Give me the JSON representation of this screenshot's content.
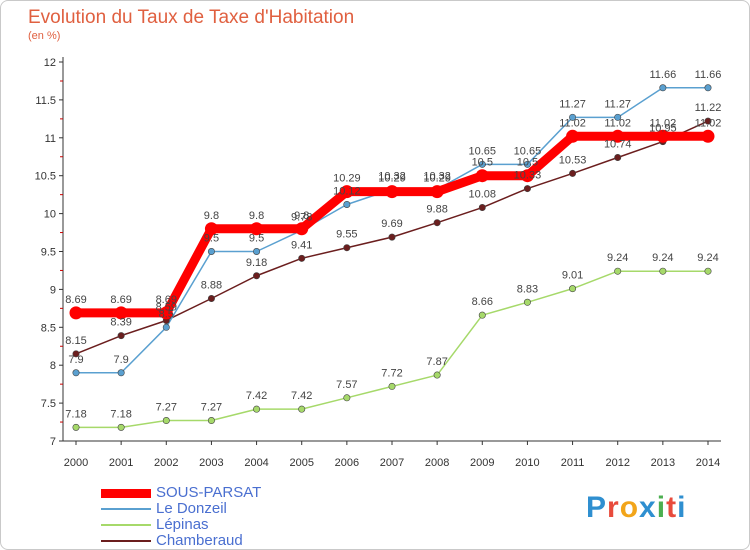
{
  "title": "Evolution du Taux de Taxe d'Habitation",
  "subtitle": "(en %)",
  "logo": {
    "text": "Proxiti",
    "colors": [
      "#2f8fd0",
      "#e84b3c",
      "#f2a51a",
      "#2f8fd0",
      "#4caf50",
      "#e84b3c",
      "#2f8fd0"
    ]
  },
  "chart_data": {
    "type": "line",
    "x": [
      "2000",
      "2001",
      "2002",
      "2003",
      "2004",
      "2005",
      "2006",
      "2007",
      "2008",
      "2009",
      "2010",
      "2011",
      "2012",
      "2013",
      "2014"
    ],
    "ylim": [
      7,
      12
    ],
    "yticks": [
      "7",
      "7.5",
      "8",
      "8.5",
      "9",
      "9.5",
      "10",
      "10.5",
      "11",
      "11.5",
      "12"
    ],
    "grid": false,
    "legend_position": "bottom-left",
    "series": [
      {
        "name": "Chamberaud",
        "color": "#6b1e1e",
        "values": [
          8.15,
          8.39,
          8.59,
          8.88,
          9.18,
          9.41,
          9.55,
          9.69,
          9.88,
          10.08,
          10.33,
          10.53,
          10.74,
          10.95,
          11.22
        ]
      },
      {
        "name": "Lépinas",
        "color": "#a6d96a",
        "values": [
          7.18,
          7.18,
          7.27,
          7.27,
          7.42,
          7.42,
          7.57,
          7.72,
          7.87,
          8.66,
          8.83,
          9.01,
          9.24,
          9.24,
          9.24
        ]
      },
      {
        "name": "Le Donzeil",
        "color": "#5aa0d0",
        "values": [
          7.9,
          7.9,
          8.5,
          9.5,
          9.5,
          9.78,
          10.12,
          10.32,
          10.32,
          10.65,
          10.65,
          11.27,
          11.27,
          11.66,
          11.66
        ]
      },
      {
        "name": "SOUS-PARSAT",
        "color": "#ff0000",
        "values": [
          8.69,
          8.69,
          8.69,
          9.8,
          9.8,
          9.8,
          10.29,
          10.29,
          10.29,
          10.5,
          10.5,
          11.02,
          11.02,
          11.02,
          11.02
        ]
      }
    ],
    "legend_order": [
      "SOUS-PARSAT",
      "Le Donzeil",
      "Lépinas",
      "Chamberaud"
    ]
  }
}
